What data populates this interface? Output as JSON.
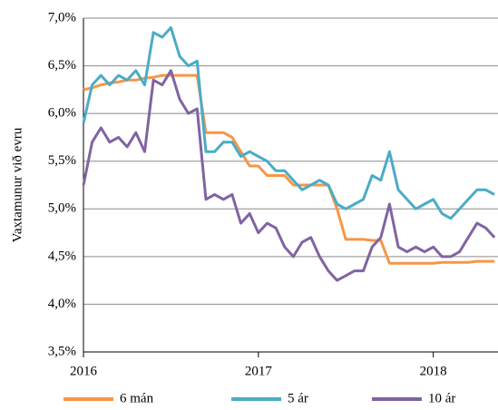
{
  "chart_data": {
    "type": "line",
    "y_label": "Vaxtamunur  við evru",
    "x": [
      2016.0,
      2016.05,
      2016.1,
      2016.15,
      2016.2,
      2016.25,
      2016.3,
      2016.35,
      2016.4,
      2016.45,
      2016.5,
      2016.55,
      2016.6,
      2016.65,
      2016.7,
      2016.75,
      2016.8,
      2016.85,
      2016.9,
      2016.95,
      2017.0,
      2017.05,
      2017.1,
      2017.15,
      2017.2,
      2017.25,
      2017.3,
      2017.35,
      2017.4,
      2017.45,
      2017.5,
      2017.55,
      2017.6,
      2017.65,
      2017.7,
      2017.75,
      2017.8,
      2017.85,
      2017.9,
      2017.95,
      2018.0,
      2018.05,
      2018.1,
      2018.15,
      2018.2,
      2018.25,
      2018.3,
      2018.35
    ],
    "series": [
      {
        "name": "6 mán",
        "color": "#f79646",
        "values": [
          6.25,
          6.27,
          6.3,
          6.32,
          6.33,
          6.35,
          6.35,
          6.37,
          6.38,
          6.4,
          6.4,
          6.4,
          6.4,
          6.4,
          5.8,
          5.8,
          5.8,
          5.75,
          5.6,
          5.45,
          5.45,
          5.35,
          5.35,
          5.35,
          5.25,
          5.25,
          5.25,
          5.25,
          5.25,
          5.0,
          4.68,
          4.68,
          4.68,
          4.67,
          4.67,
          4.43,
          4.43,
          4.43,
          4.43,
          4.43,
          4.43,
          4.44,
          4.44,
          4.44,
          4.44,
          4.45,
          4.45,
          4.45
        ]
      },
      {
        "name": "5 ár",
        "color": "#4bacc6",
        "values": [
          5.9,
          6.3,
          6.4,
          6.3,
          6.4,
          6.35,
          6.45,
          6.3,
          6.85,
          6.8,
          6.9,
          6.6,
          6.5,
          6.55,
          5.6,
          5.6,
          5.7,
          5.7,
          5.55,
          5.6,
          5.55,
          5.5,
          5.4,
          5.4,
          5.3,
          5.2,
          5.25,
          5.3,
          5.25,
          5.05,
          5.0,
          5.05,
          5.1,
          5.35,
          5.3,
          5.6,
          5.2,
          5.1,
          5.0,
          5.05,
          5.1,
          4.95,
          4.9,
          5.0,
          5.1,
          5.2,
          5.2,
          5.15
        ]
      },
      {
        "name": "10 ár",
        "color": "#8064a2",
        "values": [
          5.25,
          5.7,
          5.85,
          5.7,
          5.75,
          5.65,
          5.8,
          5.6,
          6.35,
          6.3,
          6.45,
          6.15,
          6.0,
          6.05,
          5.1,
          5.15,
          5.1,
          5.15,
          4.85,
          4.95,
          4.75,
          4.85,
          4.8,
          4.6,
          4.5,
          4.65,
          4.7,
          4.5,
          4.35,
          4.25,
          4.3,
          4.35,
          4.35,
          4.6,
          4.7,
          5.05,
          4.6,
          4.55,
          4.6,
          4.55,
          4.6,
          4.5,
          4.5,
          4.55,
          4.7,
          4.85,
          4.8,
          4.7
        ]
      }
    ],
    "xlim": [
      2016,
      2018.37
    ],
    "xticks": [
      2016,
      2017,
      2018
    ],
    "ylim": [
      3.5,
      7.0
    ],
    "yticks": [
      {
        "value": 3.5,
        "label": "3,5%"
      },
      {
        "value": 4.0,
        "label": "4,0%"
      },
      {
        "value": 4.5,
        "label": "4,5%"
      },
      {
        "value": 5.0,
        "label": "5,0%"
      },
      {
        "value": 5.5,
        "label": "5,5%"
      },
      {
        "value": 6.0,
        "label": "6,0%"
      },
      {
        "value": 6.5,
        "label": "6,5%"
      },
      {
        "value": 7.0,
        "label": "7,0%"
      }
    ],
    "grid": true,
    "legend": "bottom"
  }
}
